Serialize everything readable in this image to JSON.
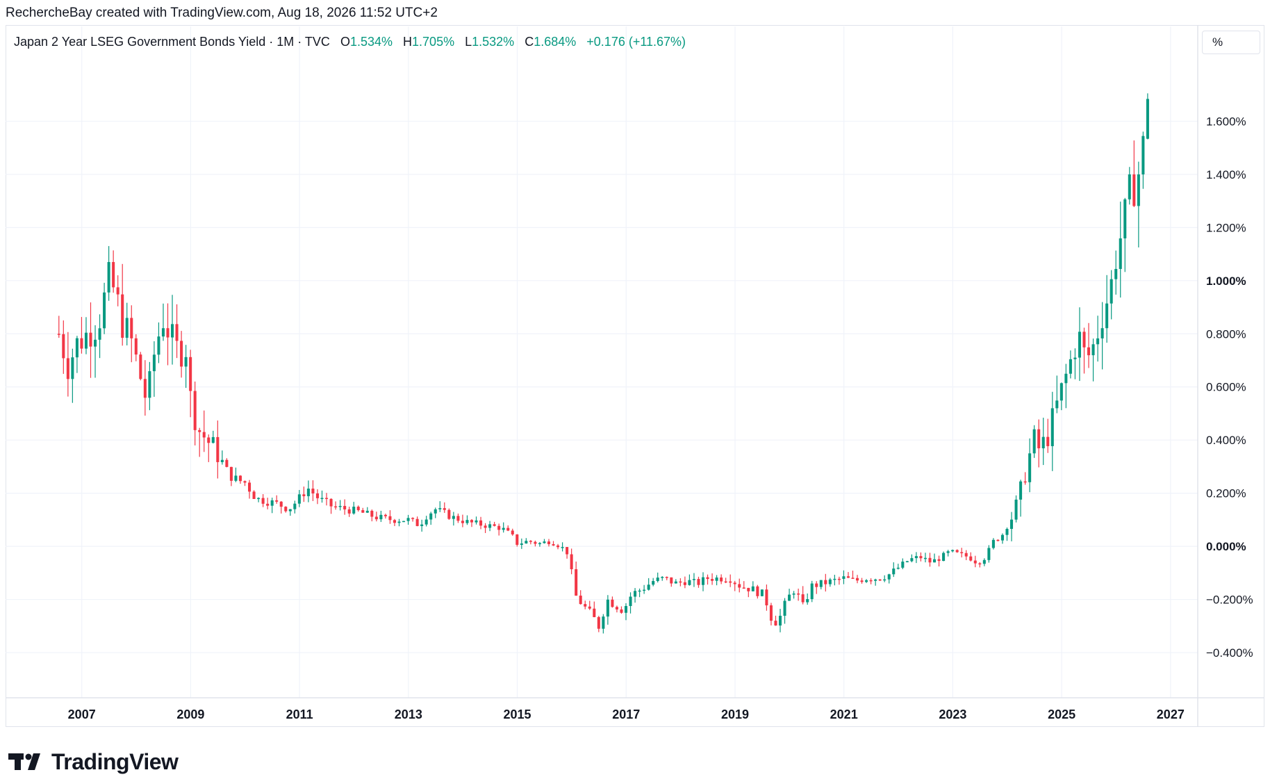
{
  "attribution": "RechercheBay created with TradingView.com, Aug 18, 2026 11:52 UTC+2",
  "legend": {
    "symbol": "Japan 2 Year LSEG Government Bonds Yield · 1M · TVC",
    "open_label": "O",
    "open": "1.534%",
    "high_label": "H",
    "high": "1.705%",
    "low_label": "L",
    "low": "1.532%",
    "close_label": "C",
    "close": "1.684%",
    "change": "+0.176 (+11.67%)"
  },
  "unit_button": "%",
  "brand": "TradingView",
  "colors": {
    "up": "#089981",
    "down": "#f23645",
    "grid": "#f0f3fa",
    "axis_text": "#131722"
  },
  "chart_data": {
    "type": "candlestick",
    "interval": "1M",
    "y_unit": "%",
    "ylim": [
      -0.57,
      1.8
    ],
    "xlim": [
      2005.6,
      2027.5
    ],
    "grid": true,
    "y_ticks": [
      {
        "value": 1.6,
        "label": "1.600%"
      },
      {
        "value": 1.4,
        "label": "1.400%"
      },
      {
        "value": 1.2,
        "label": "1.200%"
      },
      {
        "value": 1.0,
        "label": "1.000%",
        "bold": true
      },
      {
        "value": 0.8,
        "label": "0.800%"
      },
      {
        "value": 0.6,
        "label": "0.600%"
      },
      {
        "value": 0.4,
        "label": "0.400%"
      },
      {
        "value": 0.2,
        "label": "0.200%"
      },
      {
        "value": 0.0,
        "label": "0.000%",
        "bold": true
      },
      {
        "value": -0.2,
        "label": "−0.200%"
      },
      {
        "value": -0.4,
        "label": "−0.400%"
      }
    ],
    "x_ticks": [
      {
        "value": 2007,
        "label": "2007"
      },
      {
        "value": 2009,
        "label": "2009"
      },
      {
        "value": 2011,
        "label": "2011"
      },
      {
        "value": 2013,
        "label": "2013"
      },
      {
        "value": 2015,
        "label": "2015"
      },
      {
        "value": 2017,
        "label": "2017"
      },
      {
        "value": 2019,
        "label": "2019"
      },
      {
        "value": 2021,
        "label": "2021"
      },
      {
        "value": 2023,
        "label": "2023"
      },
      {
        "value": 2025,
        "label": "2025"
      },
      {
        "value": 2027,
        "label": "2027"
      }
    ],
    "close_path": [
      [
        2006.58,
        0.8
      ],
      [
        2006.75,
        0.68
      ],
      [
        2006.9,
        0.76
      ],
      [
        2007.1,
        0.8
      ],
      [
        2007.3,
        0.84
      ],
      [
        2007.5,
        1.0
      ],
      [
        2007.6,
        0.96
      ],
      [
        2007.75,
        0.84
      ],
      [
        2007.9,
        0.78
      ],
      [
        2008.05,
        0.66
      ],
      [
        2008.2,
        0.54
      ],
      [
        2008.35,
        0.75
      ],
      [
        2008.5,
        0.86
      ],
      [
        2008.65,
        0.78
      ],
      [
        2008.8,
        0.72
      ],
      [
        2008.9,
        0.78
      ],
      [
        2009.0,
        0.55
      ],
      [
        2009.15,
        0.44
      ],
      [
        2009.3,
        0.4
      ],
      [
        2009.5,
        0.35
      ],
      [
        2009.7,
        0.27
      ],
      [
        2009.85,
        0.25
      ],
      [
        2010.0,
        0.24
      ],
      [
        2010.2,
        0.18
      ],
      [
        2010.4,
        0.17
      ],
      [
        2010.6,
        0.16
      ],
      [
        2010.8,
        0.14
      ],
      [
        2010.95,
        0.17
      ],
      [
        2011.15,
        0.22
      ],
      [
        2011.35,
        0.18
      ],
      [
        2011.6,
        0.15
      ],
      [
        2011.85,
        0.14
      ],
      [
        2012.1,
        0.13
      ],
      [
        2012.4,
        0.11
      ],
      [
        2012.7,
        0.1
      ],
      [
        2013.0,
        0.1
      ],
      [
        2013.2,
        0.08
      ],
      [
        2013.35,
        0.12
      ],
      [
        2013.5,
        0.14
      ],
      [
        2013.8,
        0.11
      ],
      [
        2014.1,
        0.09
      ],
      [
        2014.4,
        0.08
      ],
      [
        2014.7,
        0.07
      ],
      [
        2014.9,
        0.04
      ],
      [
        2015.0,
        0.01
      ],
      [
        2015.2,
        0.02
      ],
      [
        2015.4,
        0.01
      ],
      [
        2015.6,
        0.02
      ],
      [
        2015.8,
        0.0
      ],
      [
        2015.95,
        -0.03
      ],
      [
        2016.05,
        -0.18
      ],
      [
        2016.2,
        -0.22
      ],
      [
        2016.4,
        -0.27
      ],
      [
        2016.5,
        -0.3
      ],
      [
        2016.65,
        -0.2
      ],
      [
        2016.8,
        -0.22
      ],
      [
        2016.95,
        -0.24
      ],
      [
        2017.1,
        -0.18
      ],
      [
        2017.3,
        -0.16
      ],
      [
        2017.5,
        -0.13
      ],
      [
        2017.7,
        -0.12
      ],
      [
        2017.9,
        -0.14
      ],
      [
        2018.1,
        -0.13
      ],
      [
        2018.3,
        -0.14
      ],
      [
        2018.5,
        -0.12
      ],
      [
        2018.7,
        -0.12
      ],
      [
        2018.9,
        -0.12
      ],
      [
        2019.1,
        -0.15
      ],
      [
        2019.3,
        -0.16
      ],
      [
        2019.5,
        -0.18
      ],
      [
        2019.6,
        -0.22
      ],
      [
        2019.7,
        -0.29
      ],
      [
        2019.85,
        -0.26
      ],
      [
        2019.95,
        -0.2
      ],
      [
        2020.1,
        -0.16
      ],
      [
        2020.25,
        -0.23
      ],
      [
        2020.4,
        -0.15
      ],
      [
        2020.6,
        -0.14
      ],
      [
        2020.8,
        -0.13
      ],
      [
        2021.0,
        -0.12
      ],
      [
        2021.2,
        -0.13
      ],
      [
        2021.4,
        -0.12
      ],
      [
        2021.6,
        -0.12
      ],
      [
        2021.8,
        -0.11
      ],
      [
        2022.0,
        -0.08
      ],
      [
        2022.2,
        -0.05
      ],
      [
        2022.4,
        -0.04
      ],
      [
        2022.6,
        -0.06
      ],
      [
        2022.8,
        -0.04
      ],
      [
        2022.95,
        -0.02
      ],
      [
        2023.1,
        -0.03
      ],
      [
        2023.3,
        -0.04
      ],
      [
        2023.45,
        -0.06
      ],
      [
        2023.6,
        -0.04
      ],
      [
        2023.75,
        0.02
      ],
      [
        2023.9,
        0.04
      ],
      [
        2024.05,
        0.1
      ],
      [
        2024.2,
        0.16
      ],
      [
        2024.35,
        0.3
      ],
      [
        2024.5,
        0.4
      ],
      [
        2024.6,
        0.36
      ],
      [
        2024.75,
        0.42
      ],
      [
        2024.9,
        0.52
      ],
      [
        2025.05,
        0.62
      ],
      [
        2025.2,
        0.72
      ],
      [
        2025.3,
        0.8
      ],
      [
        2025.45,
        0.7
      ],
      [
        2025.6,
        0.76
      ],
      [
        2025.75,
        0.88
      ],
      [
        2025.9,
        0.97
      ],
      [
        2026.0,
        1.1
      ],
      [
        2026.15,
        1.22
      ],
      [
        2026.25,
        1.32
      ],
      [
        2026.35,
        1.38
      ],
      [
        2026.45,
        1.42
      ],
      [
        2026.52,
        1.534
      ],
      [
        2026.6,
        1.684
      ]
    ],
    "last_candle": {
      "open": 1.534,
      "high": 1.705,
      "low": 1.532,
      "close": 1.684
    }
  }
}
